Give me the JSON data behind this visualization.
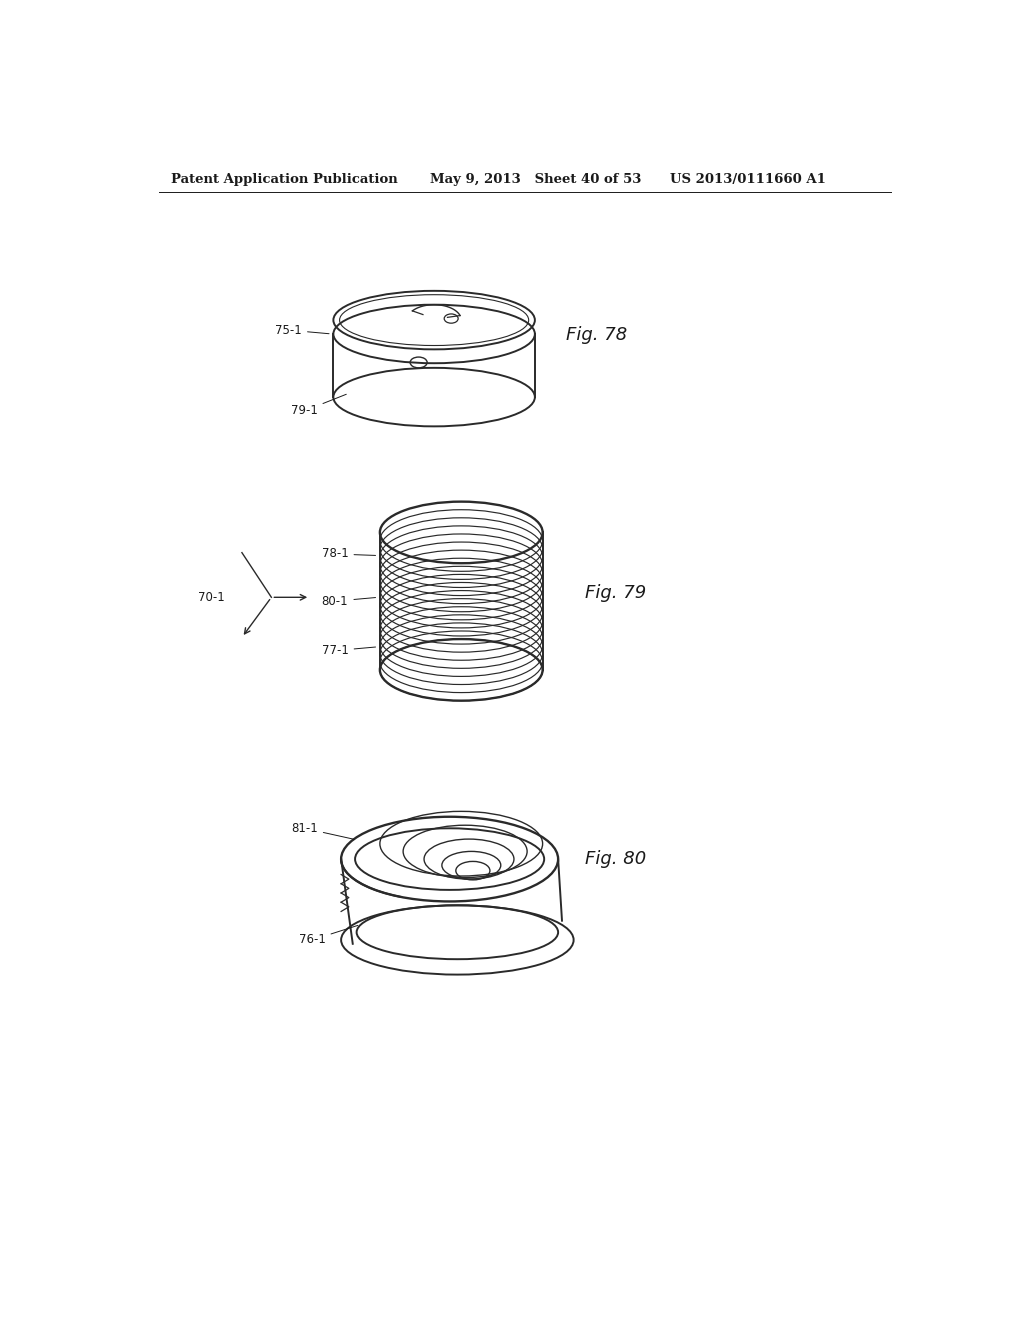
{
  "bg_color": "#ffffff",
  "header_left": "Patent Application Publication",
  "header_mid": "May 9, 2013   Sheet 40 of 53",
  "header_right": "US 2013/0111660 A1",
  "fig78_label": "Fig. 78",
  "fig79_label": "Fig. 79",
  "fig80_label": "Fig. 80",
  "label_75": "75-1",
  "label_79_l": "79-1",
  "label_78": "78-1",
  "label_80": "80-1",
  "label_77": "77-1",
  "label_70": "70-1",
  "label_81": "81-1",
  "label_76": "76-1",
  "line_color": "#2a2a2a",
  "text_color": "#1a1a1a",
  "header_fontsize": 9.5,
  "label_fontsize": 8.5,
  "figlabel_fontsize": 13
}
